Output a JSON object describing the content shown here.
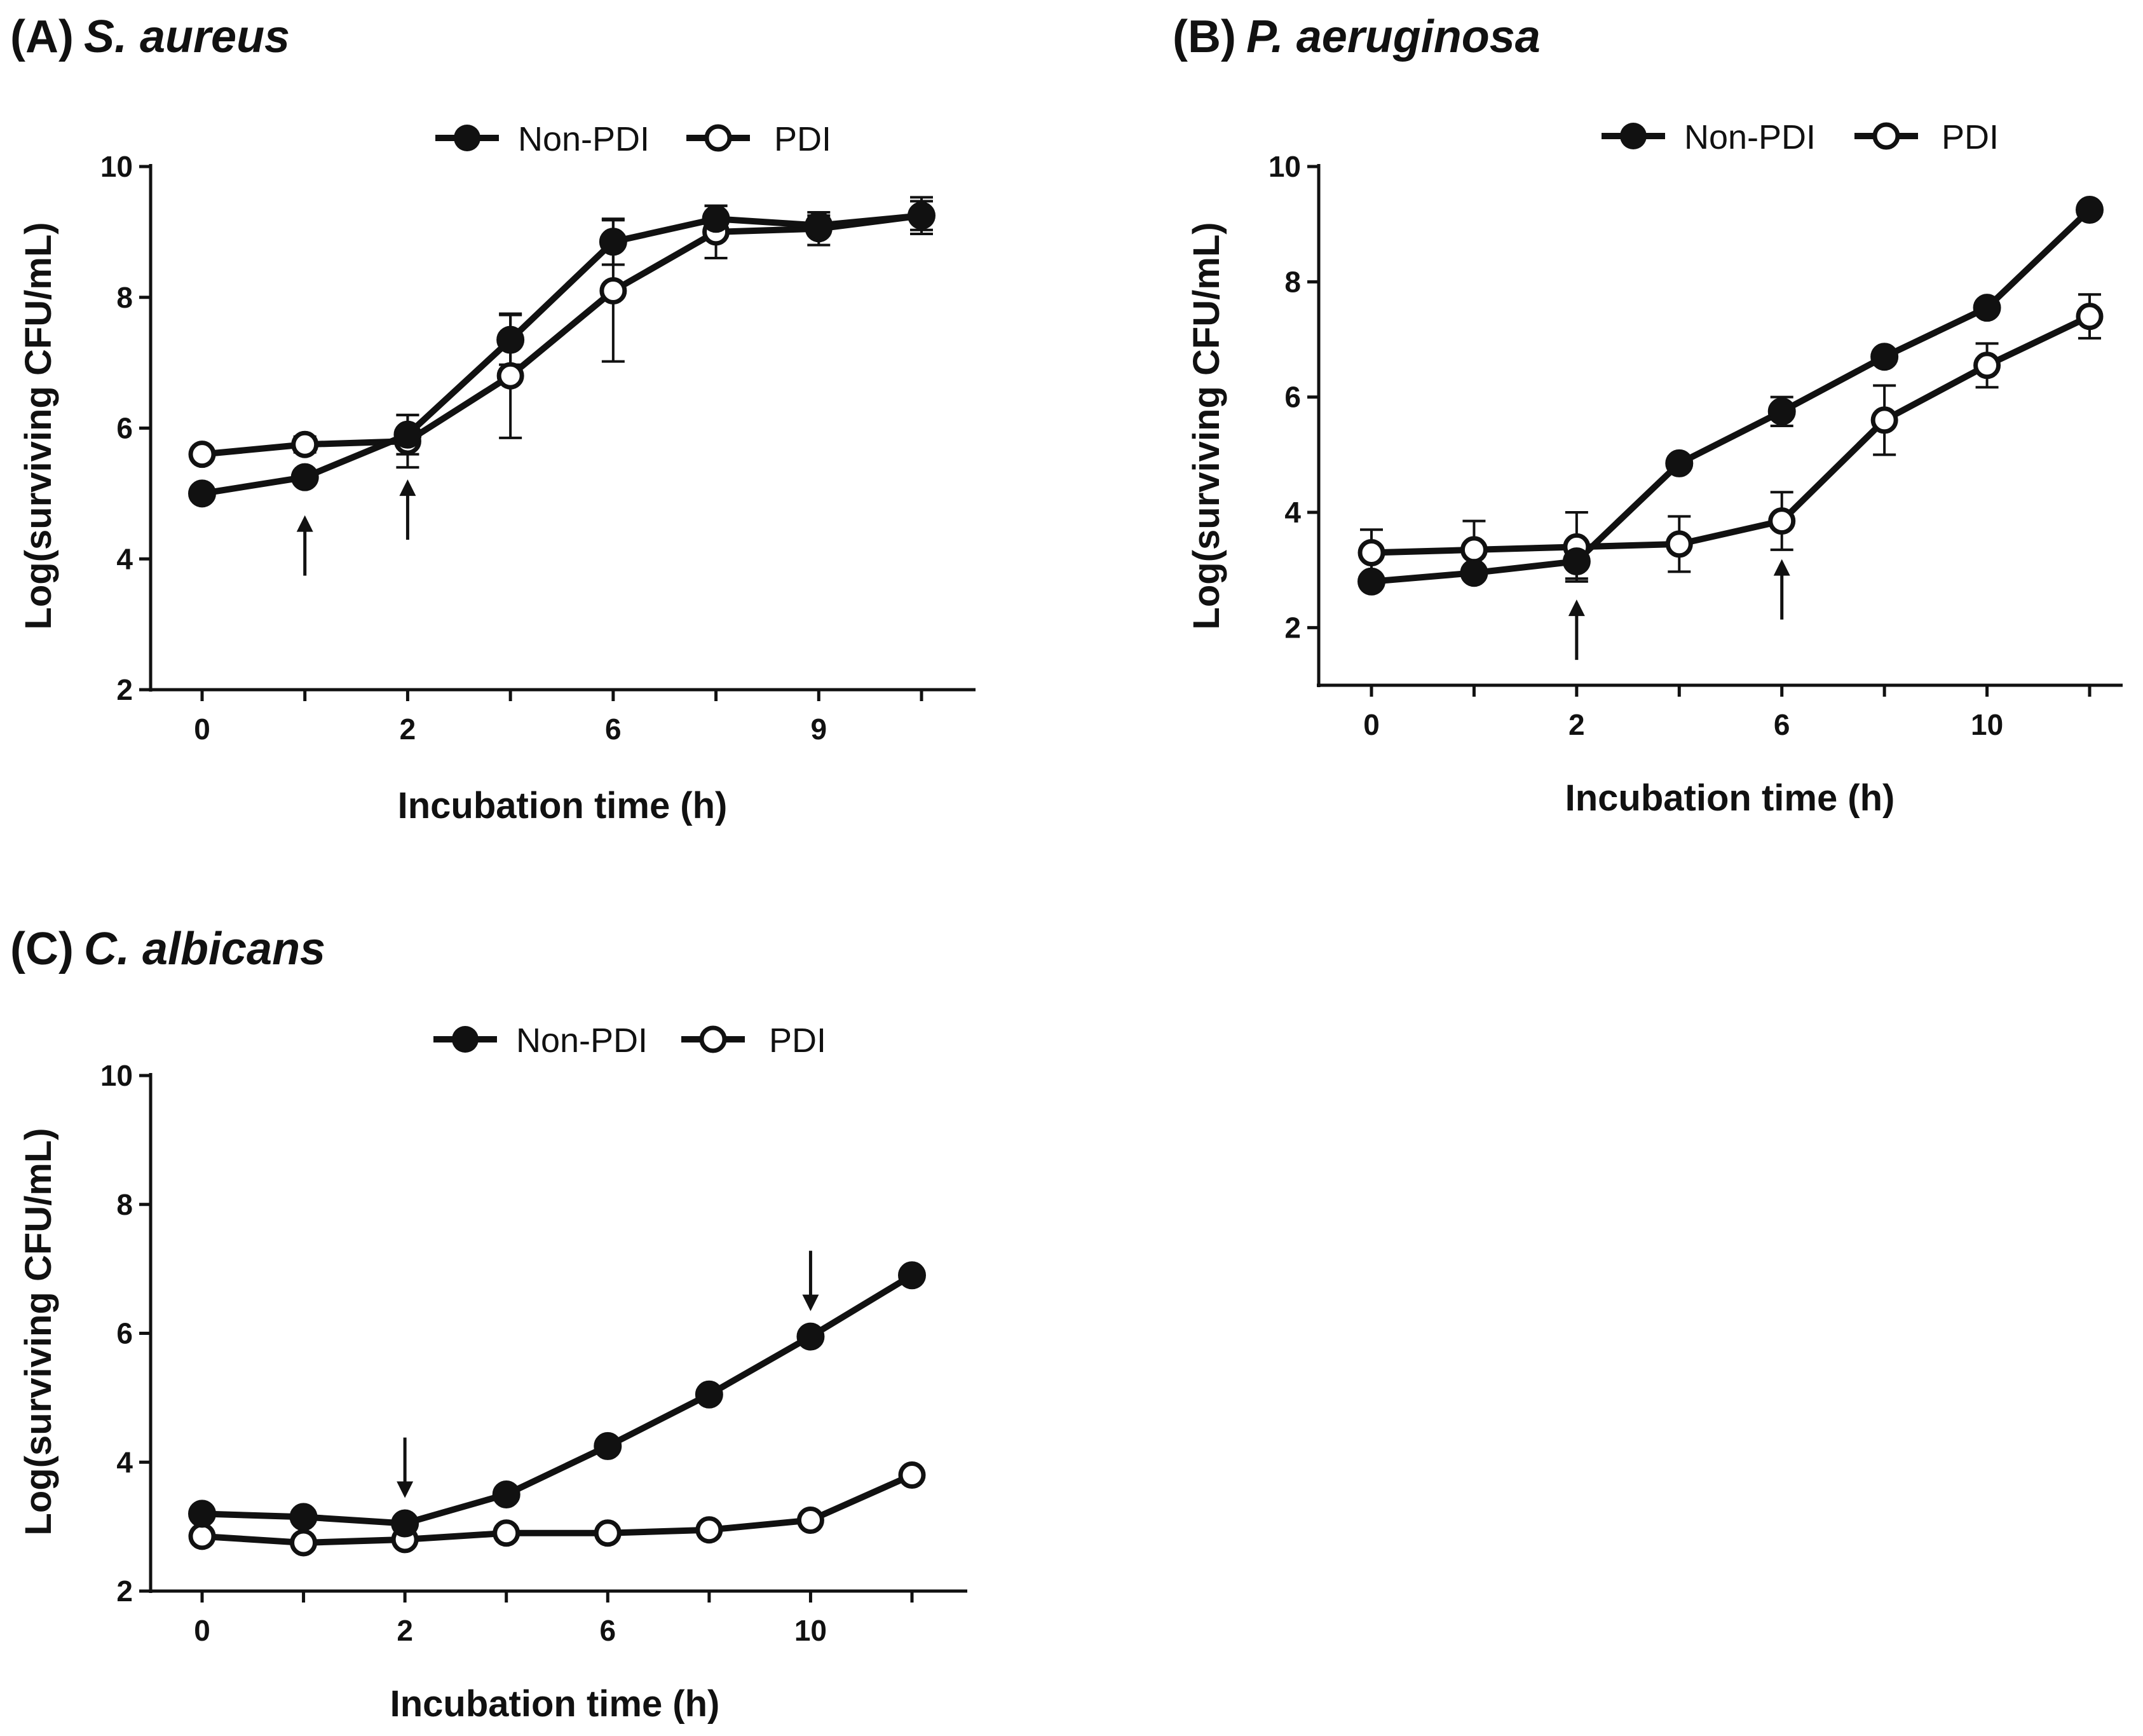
{
  "chart_data": [
    {
      "panel": "(A)",
      "title": "S. aureus",
      "type": "line",
      "xlabel": "Incubation time (h)",
      "ylabel": "Log(surviving CFU/mL)",
      "ylim": [
        2,
        10
      ],
      "yticks": [
        "2",
        "4",
        "6",
        "8",
        "10"
      ],
      "x_tick_labels": [
        "0",
        "2",
        "6",
        "9"
      ],
      "x_tick_index": [
        0,
        2,
        4,
        6
      ],
      "x_positions": [
        0,
        1,
        2,
        3,
        4,
        5,
        6,
        7
      ],
      "legend": [
        "Non-PDI",
        "PDI"
      ],
      "series": [
        {
          "name": "Non-PDI",
          "marker": "filled",
          "values": [
            5.0,
            5.25,
            5.9,
            7.35,
            8.85,
            9.2,
            9.1,
            9.25
          ],
          "errors": [
            0,
            0,
            0.3,
            0.38,
            0.35,
            0.2,
            0.15,
            0.22
          ]
        },
        {
          "name": "PDI",
          "marker": "open",
          "values": [
            5.6,
            5.75,
            5.8,
            6.8,
            8.1,
            9.0,
            9.05,
            9.25
          ],
          "errors": [
            0,
            0.12,
            0.4,
            0.95,
            1.08,
            0.4,
            0.25,
            0.28
          ]
        }
      ],
      "arrows": [
        {
          "x": 1,
          "direction": "up"
        },
        {
          "x": 2,
          "direction": "up"
        }
      ]
    },
    {
      "panel": "(B)",
      "title": "P. aeruginosa",
      "type": "line",
      "xlabel": "Incubation time (h)",
      "ylabel": "Log(surviving CFU/mL)",
      "ylim": [
        1,
        10
      ],
      "yticks": [
        "2",
        "4",
        "6",
        "8",
        "10"
      ],
      "x_tick_labels": [
        "0",
        "2",
        "6",
        "10"
      ],
      "x_tick_index": [
        0,
        2,
        4,
        6
      ],
      "x_positions": [
        0,
        1,
        2,
        3,
        4,
        5,
        6,
        7
      ],
      "legend": [
        "Non-PDI",
        "PDI"
      ],
      "series": [
        {
          "name": "Non-PDI",
          "marker": "filled",
          "values": [
            2.8,
            2.95,
            3.15,
            4.85,
            5.75,
            6.7,
            7.55,
            9.25
          ],
          "errors": [
            0,
            0,
            0.3,
            0.12,
            0.25,
            0,
            0.1,
            0
          ]
        },
        {
          "name": "PDI",
          "marker": "open",
          "values": [
            3.3,
            3.35,
            3.4,
            3.45,
            3.85,
            5.6,
            6.55,
            7.4
          ],
          "errors": [
            0.4,
            0.5,
            0.6,
            0.48,
            0.5,
            0.6,
            0.38,
            0.38
          ]
        }
      ],
      "arrows": [
        {
          "x": 2,
          "direction": "up"
        },
        {
          "x": 4,
          "direction": "up"
        }
      ]
    },
    {
      "panel": "(C)",
      "title": "C. albicans",
      "type": "line",
      "xlabel": "Incubation time (h)",
      "ylabel": "Log(surviving CFU/mL)",
      "ylim": [
        2,
        10
      ],
      "yticks": [
        "2",
        "4",
        "6",
        "8",
        "10"
      ],
      "x_tick_labels": [
        "0",
        "2",
        "6",
        "10"
      ],
      "x_tick_index": [
        0,
        2,
        4,
        6
      ],
      "x_positions": [
        0,
        1,
        2,
        3,
        4,
        5,
        6,
        7
      ],
      "legend": [
        "Non-PDI",
        "PDI"
      ],
      "series": [
        {
          "name": "Non-PDI",
          "marker": "filled",
          "values": [
            3.2,
            3.15,
            3.05,
            3.5,
            4.25,
            5.05,
            5.95,
            6.9
          ],
          "errors": [
            0,
            0,
            0,
            0,
            0,
            0,
            0,
            0
          ]
        },
        {
          "name": "PDI",
          "marker": "open",
          "values": [
            2.85,
            2.75,
            2.8,
            2.9,
            2.9,
            2.95,
            3.1,
            3.8
          ],
          "errors": [
            0,
            0,
            0,
            0,
            0,
            0,
            0,
            0
          ]
        }
      ],
      "arrows": [
        {
          "x": 2,
          "direction": "down"
        },
        {
          "x": 6,
          "direction": "down"
        }
      ]
    }
  ]
}
